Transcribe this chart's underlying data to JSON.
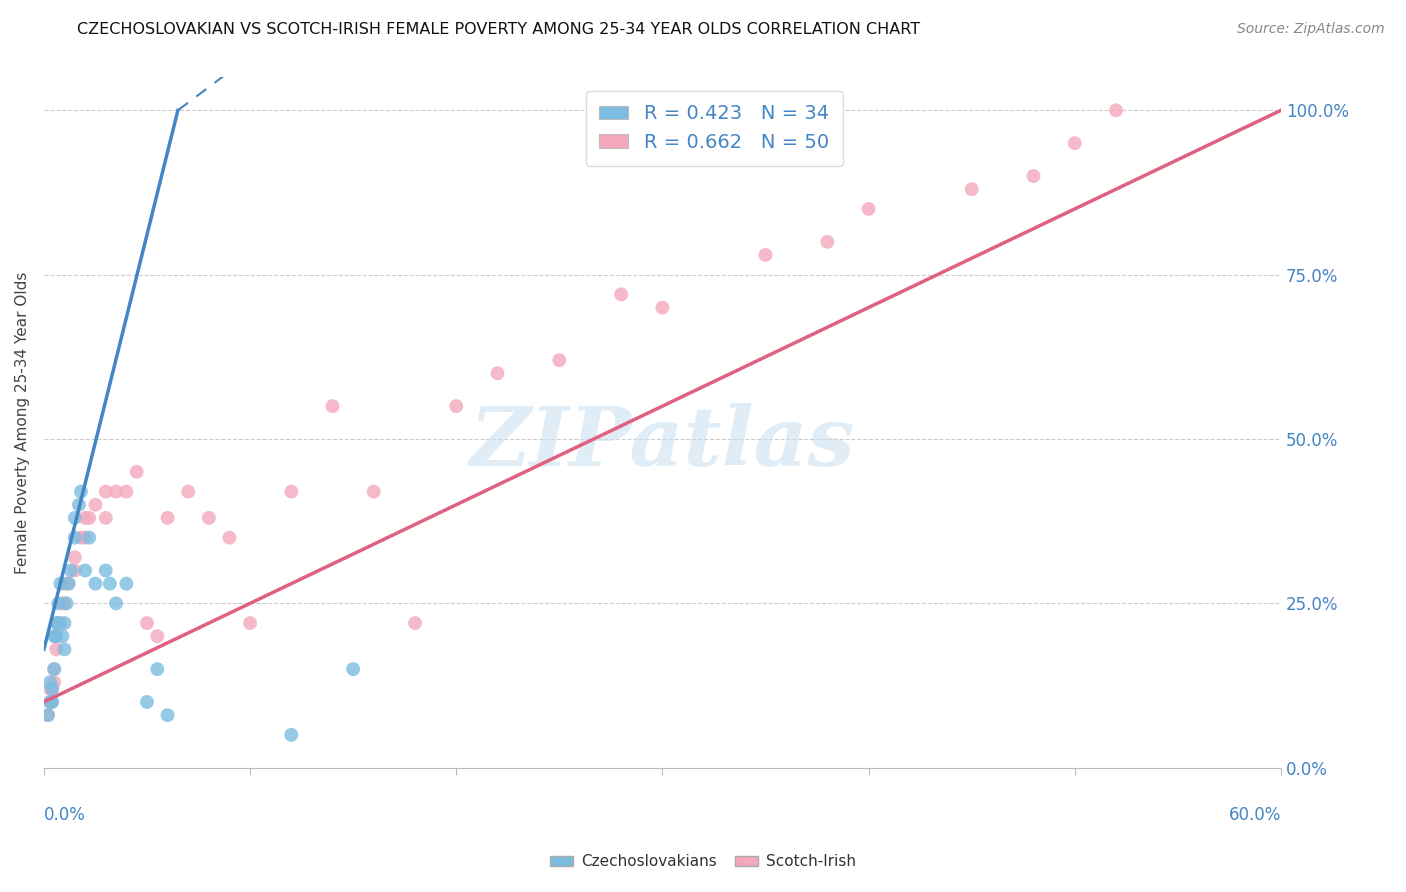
{
  "title": "CZECHOSLOVAKIAN VS SCOTCH-IRISH FEMALE POVERTY AMONG 25-34 YEAR OLDS CORRELATION CHART",
  "source": "Source: ZipAtlas.com",
  "ylabel": "Female Poverty Among 25-34 Year Olds",
  "ylabel_right_ticks": [
    "0.0%",
    "25.0%",
    "50.0%",
    "75.0%",
    "100.0%"
  ],
  "ylabel_right_vals": [
    0,
    25,
    50,
    75,
    100
  ],
  "xlim": [
    0,
    60
  ],
  "ylim": [
    0,
    105
  ],
  "blue_color": "#7bbde0",
  "pink_color": "#f4a8bc",
  "blue_line_color": "#4485c4",
  "pink_line_color": "#e06080",
  "watermark_color": "#c8dff0",
  "blue_scatter_x": [
    0.2,
    0.3,
    0.3,
    0.4,
    0.4,
    0.5,
    0.5,
    0.6,
    0.6,
    0.7,
    0.7,
    0.8,
    0.9,
    1.0,
    1.0,
    1.1,
    1.2,
    1.3,
    1.5,
    1.5,
    1.7,
    1.8,
    2.0,
    2.2,
    2.5,
    3.0,
    3.2,
    3.5,
    4.0,
    5.0,
    5.5,
    6.0,
    12.0,
    15.0
  ],
  "blue_scatter_y": [
    8,
    10,
    13,
    10,
    12,
    15,
    20,
    20,
    22,
    22,
    25,
    28,
    20,
    18,
    22,
    25,
    28,
    30,
    35,
    38,
    40,
    42,
    30,
    35,
    28,
    30,
    28,
    25,
    28,
    10,
    15,
    8,
    5,
    15
  ],
  "pink_scatter_x": [
    0.2,
    0.3,
    0.3,
    0.4,
    0.4,
    0.5,
    0.5,
    0.6,
    0.6,
    0.7,
    0.8,
    0.9,
    1.0,
    1.0,
    1.2,
    1.5,
    1.5,
    1.8,
    2.0,
    2.0,
    2.2,
    2.5,
    3.0,
    3.0,
    3.5,
    4.0,
    4.5,
    5.0,
    5.5,
    6.0,
    7.0,
    8.0,
    9.0,
    10.0,
    12.0,
    14.0,
    16.0,
    18.0,
    20.0,
    22.0,
    25.0,
    28.0,
    30.0,
    35.0,
    38.0,
    40.0,
    45.0,
    48.0,
    50.0,
    52.0
  ],
  "pink_scatter_y": [
    8,
    10,
    12,
    10,
    12,
    13,
    15,
    18,
    20,
    22,
    22,
    25,
    25,
    28,
    28,
    30,
    32,
    35,
    35,
    38,
    38,
    40,
    38,
    42,
    42,
    42,
    45,
    22,
    20,
    38,
    42,
    38,
    35,
    22,
    42,
    55,
    42,
    22,
    55,
    60,
    62,
    72,
    70,
    78,
    80,
    85,
    88,
    90,
    95,
    100
  ],
  "blue_line_x0": 0,
  "blue_line_y0": 18,
  "blue_line_x1": 6.5,
  "blue_line_y1": 100,
  "blue_line_xdash0": 6.5,
  "blue_line_ydash0": 100,
  "blue_line_xdash1": 15,
  "blue_line_ydash1": 120,
  "pink_line_x0": 0,
  "pink_line_y0": 10,
  "pink_line_x1": 60,
  "pink_line_y1": 100
}
